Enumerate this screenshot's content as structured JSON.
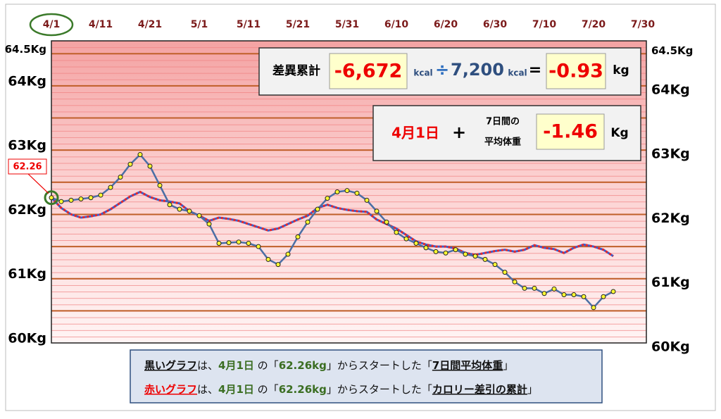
{
  "chart_data": {
    "type": "line",
    "categories": [
      "4/1",
      null,
      null,
      null,
      null,
      "4/11",
      null,
      null,
      null,
      null,
      "4/21",
      null,
      null,
      null,
      null,
      "5/1",
      null,
      null,
      null,
      null,
      "5/11",
      null,
      null,
      null,
      null,
      "5/21",
      null,
      null,
      null,
      null,
      "5/31",
      null,
      null,
      null,
      null,
      "6/10",
      null,
      null,
      null,
      null,
      "6/20",
      null,
      null,
      null,
      null,
      "6/30",
      null,
      null,
      null,
      null,
      "7/10",
      null,
      null,
      null,
      null,
      "7/20",
      null,
      null,
      null,
      null,
      "7/30"
    ],
    "series": [
      {
        "name": "黒いグラフ",
        "color": "#4a6fa5",
        "values": [
          62.26,
          62.2,
          62.22,
          62.24,
          62.26,
          62.3,
          62.42,
          62.58,
          62.78,
          62.93,
          62.75,
          62.45,
          62.15,
          62.08,
          62.05,
          61.98,
          61.85,
          61.55,
          61.56,
          61.57,
          61.55,
          61.5,
          61.3,
          61.22,
          61.38,
          61.65,
          61.88,
          62.08,
          62.25,
          62.35,
          62.37,
          62.33,
          62.22,
          62.05,
          61.88,
          61.72,
          61.62,
          61.55,
          61.48,
          61.42,
          61.4,
          61.45,
          61.38,
          61.35,
          61.3,
          61.22,
          61.1,
          60.95,
          60.85,
          60.85,
          60.77,
          60.84,
          60.75,
          60.75,
          60.72,
          60.55,
          60.72,
          60.8,
          null,
          null,
          null
        ]
      },
      {
        "name": "赤いグラフ",
        "color": "#e8262a",
        "values": [
          62.26,
          62.1,
          62.0,
          61.95,
          61.97,
          62.0,
          62.08,
          62.18,
          62.28,
          62.35,
          62.27,
          62.22,
          62.2,
          62.17,
          62.05,
          61.98,
          61.9,
          61.95,
          61.93,
          61.9,
          61.85,
          61.8,
          61.75,
          61.78,
          61.85,
          61.92,
          61.98,
          62.1,
          62.15,
          62.1,
          62.07,
          62.05,
          62.04,
          61.92,
          61.85,
          61.78,
          61.68,
          61.58,
          61.53,
          61.5,
          61.5,
          61.47,
          61.4,
          61.37,
          61.4,
          61.43,
          61.45,
          61.42,
          61.45,
          61.52,
          61.48,
          61.46,
          61.4,
          61.48,
          61.53,
          61.5,
          61.45,
          61.35,
          null,
          null,
          null
        ]
      }
    ],
    "ylim": [
      60,
      64.7
    ],
    "yticks": [
      {
        "value": 60,
        "label": "60Kg"
      },
      {
        "value": 61,
        "label": "61Kg"
      },
      {
        "value": 62,
        "label": "62Kg"
      },
      {
        "value": 63,
        "label": "63Kg"
      },
      {
        "value": 64,
        "label": "64Kg"
      },
      {
        "value": 64.5,
        "label": "64.5Kg"
      }
    ],
    "major_grid": [
      60.5,
      61,
      61.5,
      62,
      62.5,
      63,
      63.5,
      64,
      64.5
    ],
    "start_label": "62.26",
    "summary_box": {
      "title": "差異累計",
      "kcal_total": "-6,672",
      "unit1": "kcal",
      "divide": "÷",
      "kcal_per_kg": "7,200",
      "unit2": "kcal",
      "equals": "=",
      "result": "-0.93",
      "result_unit": "kg"
    },
    "weight_box": {
      "date": "4月1日",
      "plus": "+",
      "caption1": "7日間の",
      "caption2": "平均体重",
      "result": "-1.46",
      "result_unit": "Kg"
    },
    "notes": [
      [
        "黒いグラフ",
        "は、",
        "4月1日",
        " の「",
        "62.26kg",
        "」からスタートした「",
        "7日間平均体重",
        "」"
      ],
      [
        "赤いグラフ",
        "は、",
        "4月1日",
        " の「",
        "62.26kg",
        "」からスタートした「",
        "カロリー差引の累計",
        "」"
      ]
    ]
  }
}
